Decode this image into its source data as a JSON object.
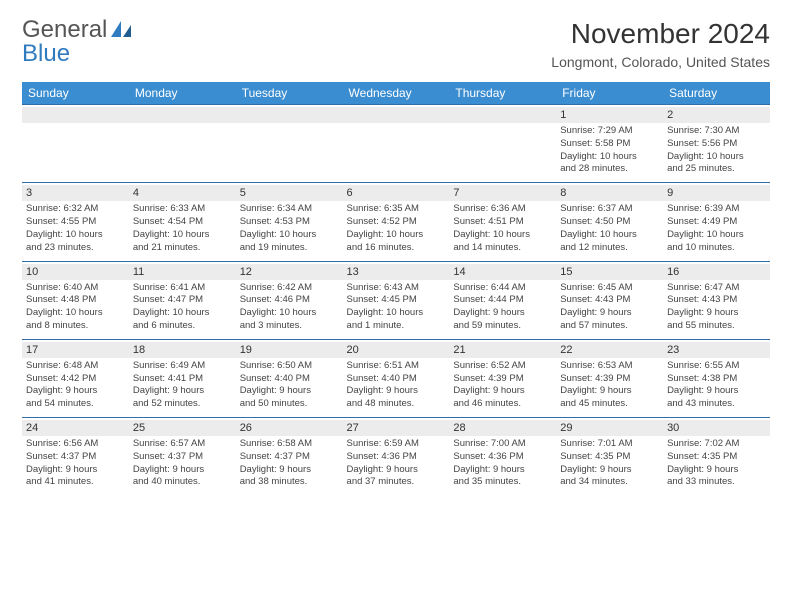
{
  "brand": {
    "word1": "General",
    "word2": "Blue"
  },
  "title": "November 2024",
  "location": "Longmont, Colorado, United States",
  "colors": {
    "header_bg": "#3a8dd0",
    "header_text": "#ffffff",
    "daynum_bg": "#ececec",
    "cell_border": "#2f6fa8",
    "text": "#444444",
    "brand_accent": "#2f7bbf"
  },
  "day_headers": [
    "Sunday",
    "Monday",
    "Tuesday",
    "Wednesday",
    "Thursday",
    "Friday",
    "Saturday"
  ],
  "weeks": [
    [
      null,
      null,
      null,
      null,
      null,
      {
        "n": "1",
        "sr": "Sunrise: 7:29 AM",
        "ss": "Sunset: 5:58 PM",
        "d1": "Daylight: 10 hours",
        "d2": "and 28 minutes."
      },
      {
        "n": "2",
        "sr": "Sunrise: 7:30 AM",
        "ss": "Sunset: 5:56 PM",
        "d1": "Daylight: 10 hours",
        "d2": "and 25 minutes."
      }
    ],
    [
      {
        "n": "3",
        "sr": "Sunrise: 6:32 AM",
        "ss": "Sunset: 4:55 PM",
        "d1": "Daylight: 10 hours",
        "d2": "and 23 minutes."
      },
      {
        "n": "4",
        "sr": "Sunrise: 6:33 AM",
        "ss": "Sunset: 4:54 PM",
        "d1": "Daylight: 10 hours",
        "d2": "and 21 minutes."
      },
      {
        "n": "5",
        "sr": "Sunrise: 6:34 AM",
        "ss": "Sunset: 4:53 PM",
        "d1": "Daylight: 10 hours",
        "d2": "and 19 minutes."
      },
      {
        "n": "6",
        "sr": "Sunrise: 6:35 AM",
        "ss": "Sunset: 4:52 PM",
        "d1": "Daylight: 10 hours",
        "d2": "and 16 minutes."
      },
      {
        "n": "7",
        "sr": "Sunrise: 6:36 AM",
        "ss": "Sunset: 4:51 PM",
        "d1": "Daylight: 10 hours",
        "d2": "and 14 minutes."
      },
      {
        "n": "8",
        "sr": "Sunrise: 6:37 AM",
        "ss": "Sunset: 4:50 PM",
        "d1": "Daylight: 10 hours",
        "d2": "and 12 minutes."
      },
      {
        "n": "9",
        "sr": "Sunrise: 6:39 AM",
        "ss": "Sunset: 4:49 PM",
        "d1": "Daylight: 10 hours",
        "d2": "and 10 minutes."
      }
    ],
    [
      {
        "n": "10",
        "sr": "Sunrise: 6:40 AM",
        "ss": "Sunset: 4:48 PM",
        "d1": "Daylight: 10 hours",
        "d2": "and 8 minutes."
      },
      {
        "n": "11",
        "sr": "Sunrise: 6:41 AM",
        "ss": "Sunset: 4:47 PM",
        "d1": "Daylight: 10 hours",
        "d2": "and 6 minutes."
      },
      {
        "n": "12",
        "sr": "Sunrise: 6:42 AM",
        "ss": "Sunset: 4:46 PM",
        "d1": "Daylight: 10 hours",
        "d2": "and 3 minutes."
      },
      {
        "n": "13",
        "sr": "Sunrise: 6:43 AM",
        "ss": "Sunset: 4:45 PM",
        "d1": "Daylight: 10 hours",
        "d2": "and 1 minute."
      },
      {
        "n": "14",
        "sr": "Sunrise: 6:44 AM",
        "ss": "Sunset: 4:44 PM",
        "d1": "Daylight: 9 hours",
        "d2": "and 59 minutes."
      },
      {
        "n": "15",
        "sr": "Sunrise: 6:45 AM",
        "ss": "Sunset: 4:43 PM",
        "d1": "Daylight: 9 hours",
        "d2": "and 57 minutes."
      },
      {
        "n": "16",
        "sr": "Sunrise: 6:47 AM",
        "ss": "Sunset: 4:43 PM",
        "d1": "Daylight: 9 hours",
        "d2": "and 55 minutes."
      }
    ],
    [
      {
        "n": "17",
        "sr": "Sunrise: 6:48 AM",
        "ss": "Sunset: 4:42 PM",
        "d1": "Daylight: 9 hours",
        "d2": "and 54 minutes."
      },
      {
        "n": "18",
        "sr": "Sunrise: 6:49 AM",
        "ss": "Sunset: 4:41 PM",
        "d1": "Daylight: 9 hours",
        "d2": "and 52 minutes."
      },
      {
        "n": "19",
        "sr": "Sunrise: 6:50 AM",
        "ss": "Sunset: 4:40 PM",
        "d1": "Daylight: 9 hours",
        "d2": "and 50 minutes."
      },
      {
        "n": "20",
        "sr": "Sunrise: 6:51 AM",
        "ss": "Sunset: 4:40 PM",
        "d1": "Daylight: 9 hours",
        "d2": "and 48 minutes."
      },
      {
        "n": "21",
        "sr": "Sunrise: 6:52 AM",
        "ss": "Sunset: 4:39 PM",
        "d1": "Daylight: 9 hours",
        "d2": "and 46 minutes."
      },
      {
        "n": "22",
        "sr": "Sunrise: 6:53 AM",
        "ss": "Sunset: 4:39 PM",
        "d1": "Daylight: 9 hours",
        "d2": "and 45 minutes."
      },
      {
        "n": "23",
        "sr": "Sunrise: 6:55 AM",
        "ss": "Sunset: 4:38 PM",
        "d1": "Daylight: 9 hours",
        "d2": "and 43 minutes."
      }
    ],
    [
      {
        "n": "24",
        "sr": "Sunrise: 6:56 AM",
        "ss": "Sunset: 4:37 PM",
        "d1": "Daylight: 9 hours",
        "d2": "and 41 minutes."
      },
      {
        "n": "25",
        "sr": "Sunrise: 6:57 AM",
        "ss": "Sunset: 4:37 PM",
        "d1": "Daylight: 9 hours",
        "d2": "and 40 minutes."
      },
      {
        "n": "26",
        "sr": "Sunrise: 6:58 AM",
        "ss": "Sunset: 4:37 PM",
        "d1": "Daylight: 9 hours",
        "d2": "and 38 minutes."
      },
      {
        "n": "27",
        "sr": "Sunrise: 6:59 AM",
        "ss": "Sunset: 4:36 PM",
        "d1": "Daylight: 9 hours",
        "d2": "and 37 minutes."
      },
      {
        "n": "28",
        "sr": "Sunrise: 7:00 AM",
        "ss": "Sunset: 4:36 PM",
        "d1": "Daylight: 9 hours",
        "d2": "and 35 minutes."
      },
      {
        "n": "29",
        "sr": "Sunrise: 7:01 AM",
        "ss": "Sunset: 4:35 PM",
        "d1": "Daylight: 9 hours",
        "d2": "and 34 minutes."
      },
      {
        "n": "30",
        "sr": "Sunrise: 7:02 AM",
        "ss": "Sunset: 4:35 PM",
        "d1": "Daylight: 9 hours",
        "d2": "and 33 minutes."
      }
    ]
  ]
}
